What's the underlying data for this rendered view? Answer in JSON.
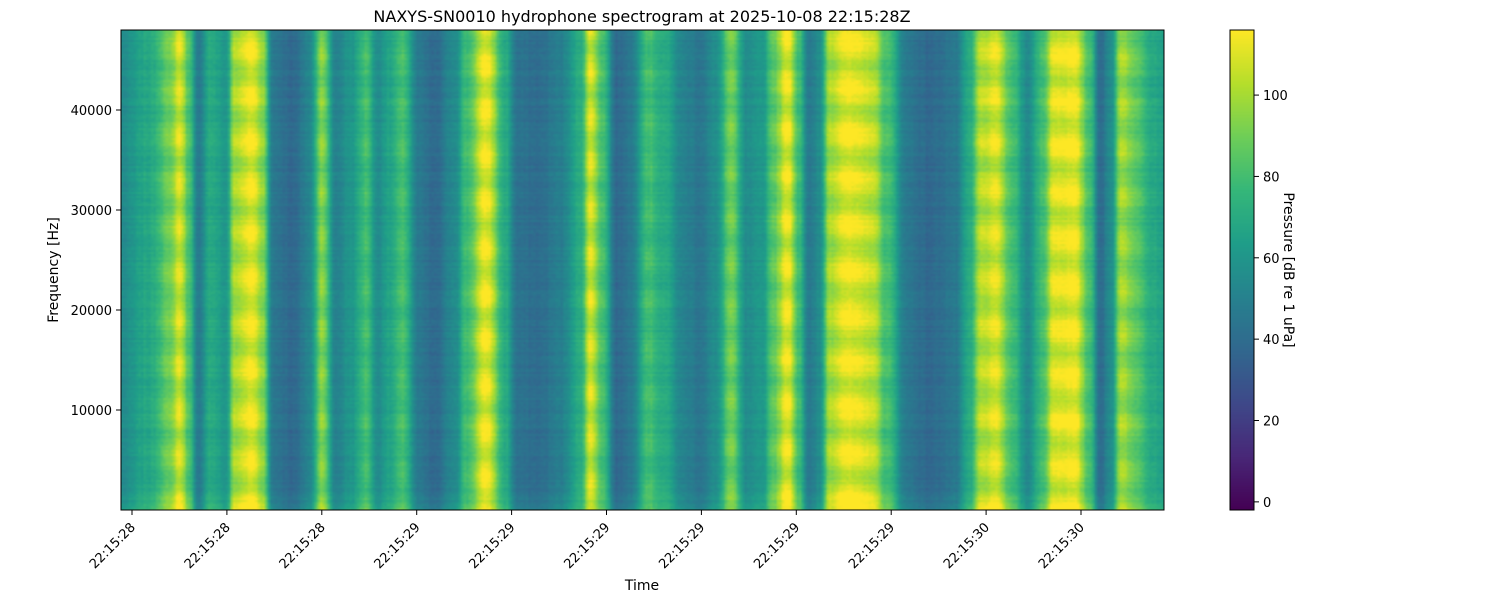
{
  "chart_data": {
    "type": "heatmap",
    "title": "NAXYS-SN0010 hydrophone spectrogram at 2025-10-08 22:15:28Z",
    "xlabel": "Time",
    "ylabel": "Frequency [Hz]",
    "colorbar_label": "Pressure [dB re 1 uPa]",
    "colormap": "viridis",
    "colormap_stops": [
      "#440154",
      "#482878",
      "#3e4989",
      "#31688e",
      "#26828e",
      "#1f9e89",
      "#35b779",
      "#6ece58",
      "#b5de2b",
      "#fde725"
    ],
    "ylim": [
      0,
      48000
    ],
    "y_ticks": [
      10000,
      20000,
      30000,
      40000
    ],
    "y_tick_labels": [
      "10000",
      "20000",
      "30000",
      "40000"
    ],
    "x_tick_labels": [
      "22:15:28",
      "22:15:28",
      "22:15:28",
      "22:15:29",
      "22:15:29",
      "22:15:29",
      "22:15:29",
      "22:15:29",
      "22:15:29",
      "22:15:30",
      "22:15:30"
    ],
    "colorbar_range": [
      -2,
      116
    ],
    "colorbar_ticks": [
      0,
      20,
      40,
      60,
      80,
      100
    ],
    "colorbar_tick_labels": [
      "0",
      "20",
      "40",
      "60",
      "80",
      "100"
    ],
    "time_profile_db": [
      {
        "t": 0.0,
        "db": 55
      },
      {
        "t": 0.025,
        "db": 68
      },
      {
        "t": 0.045,
        "db": 88
      },
      {
        "t": 0.055,
        "db": 108
      },
      {
        "t": 0.065,
        "db": 80
      },
      {
        "t": 0.073,
        "db": 45
      },
      {
        "t": 0.085,
        "db": 70
      },
      {
        "t": 0.1,
        "db": 60
      },
      {
        "t": 0.108,
        "db": 100
      },
      {
        "t": 0.125,
        "db": 112
      },
      {
        "t": 0.135,
        "db": 95
      },
      {
        "t": 0.145,
        "db": 45
      },
      {
        "t": 0.165,
        "db": 38
      },
      {
        "t": 0.18,
        "db": 52
      },
      {
        "t": 0.192,
        "db": 95
      },
      {
        "t": 0.205,
        "db": 50
      },
      {
        "t": 0.22,
        "db": 60
      },
      {
        "t": 0.235,
        "db": 80
      },
      {
        "t": 0.245,
        "db": 55
      },
      {
        "t": 0.255,
        "db": 65
      },
      {
        "t": 0.27,
        "db": 80
      },
      {
        "t": 0.285,
        "db": 45
      },
      {
        "t": 0.3,
        "db": 38
      },
      {
        "t": 0.32,
        "db": 55
      },
      {
        "t": 0.33,
        "db": 78
      },
      {
        "t": 0.35,
        "db": 112
      },
      {
        "t": 0.368,
        "db": 70
      },
      {
        "t": 0.38,
        "db": 42
      },
      {
        "t": 0.4,
        "db": 40
      },
      {
        "t": 0.42,
        "db": 48
      },
      {
        "t": 0.44,
        "db": 70
      },
      {
        "t": 0.45,
        "db": 108
      },
      {
        "t": 0.462,
        "db": 80
      },
      {
        "t": 0.475,
        "db": 38
      },
      {
        "t": 0.488,
        "db": 45
      },
      {
        "t": 0.505,
        "db": 80
      },
      {
        "t": 0.52,
        "db": 70
      },
      {
        "t": 0.54,
        "db": 50
      },
      {
        "t": 0.555,
        "db": 45
      },
      {
        "t": 0.57,
        "db": 55
      },
      {
        "t": 0.585,
        "db": 90
      },
      {
        "t": 0.6,
        "db": 55
      },
      {
        "t": 0.615,
        "db": 60
      },
      {
        "t": 0.625,
        "db": 85
      },
      {
        "t": 0.64,
        "db": 112
      },
      {
        "t": 0.65,
        "db": 80
      },
      {
        "t": 0.66,
        "db": 45
      },
      {
        "t": 0.67,
        "db": 55
      },
      {
        "t": 0.68,
        "db": 100
      },
      {
        "t": 0.695,
        "db": 112
      },
      {
        "t": 0.72,
        "db": 105
      },
      {
        "t": 0.735,
        "db": 80
      },
      {
        "t": 0.755,
        "db": 45
      },
      {
        "t": 0.775,
        "db": 38
      },
      {
        "t": 0.8,
        "db": 45
      },
      {
        "t": 0.815,
        "db": 70
      },
      {
        "t": 0.825,
        "db": 102
      },
      {
        "t": 0.84,
        "db": 108
      },
      {
        "t": 0.855,
        "db": 80
      },
      {
        "t": 0.87,
        "db": 55
      },
      {
        "t": 0.885,
        "db": 80
      },
      {
        "t": 0.895,
        "db": 110
      },
      {
        "t": 0.915,
        "db": 112
      },
      {
        "t": 0.93,
        "db": 80
      },
      {
        "t": 0.94,
        "db": 40
      },
      {
        "t": 0.95,
        "db": 55
      },
      {
        "t": 0.96,
        "db": 100
      },
      {
        "t": 0.975,
        "db": 85
      },
      {
        "t": 0.99,
        "db": 70
      },
      {
        "t": 1.0,
        "db": 65
      }
    ]
  }
}
